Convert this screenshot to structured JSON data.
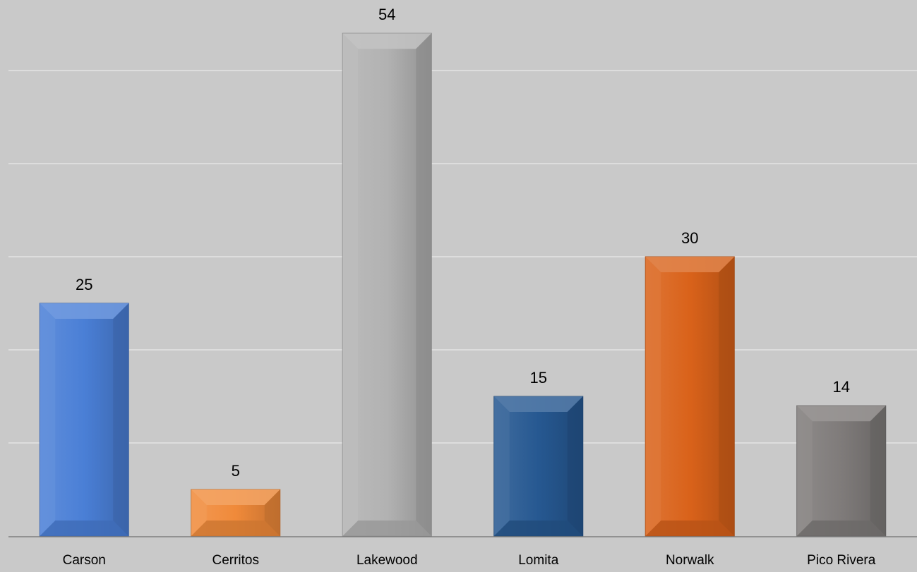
{
  "chart_data": {
    "type": "bar",
    "title": "",
    "xlabel": "",
    "ylabel": "",
    "categories": [
      "Carson",
      "Cerritos",
      "Lakewood",
      "Lomita",
      "Norwalk",
      "Pico Rivera"
    ],
    "values": [
      25,
      5,
      54,
      15,
      30,
      14
    ],
    "data_labels": [
      "25",
      "5",
      "54",
      "15",
      "30",
      "14"
    ],
    "bar_colors": [
      "#4a7fd6",
      "#f08a3a",
      "#b2b2b2",
      "#265891",
      "#d9621a",
      "#7f7b7a"
    ],
    "ylim": [
      0,
      60
    ],
    "gridlines": [
      10,
      20,
      30,
      40,
      50
    ],
    "grid": true,
    "legend": "none",
    "background": "#c9c9c9",
    "gridline_color": "#e4e4e4",
    "axis_color": "#7f7f7f",
    "text_color": "#000000"
  }
}
